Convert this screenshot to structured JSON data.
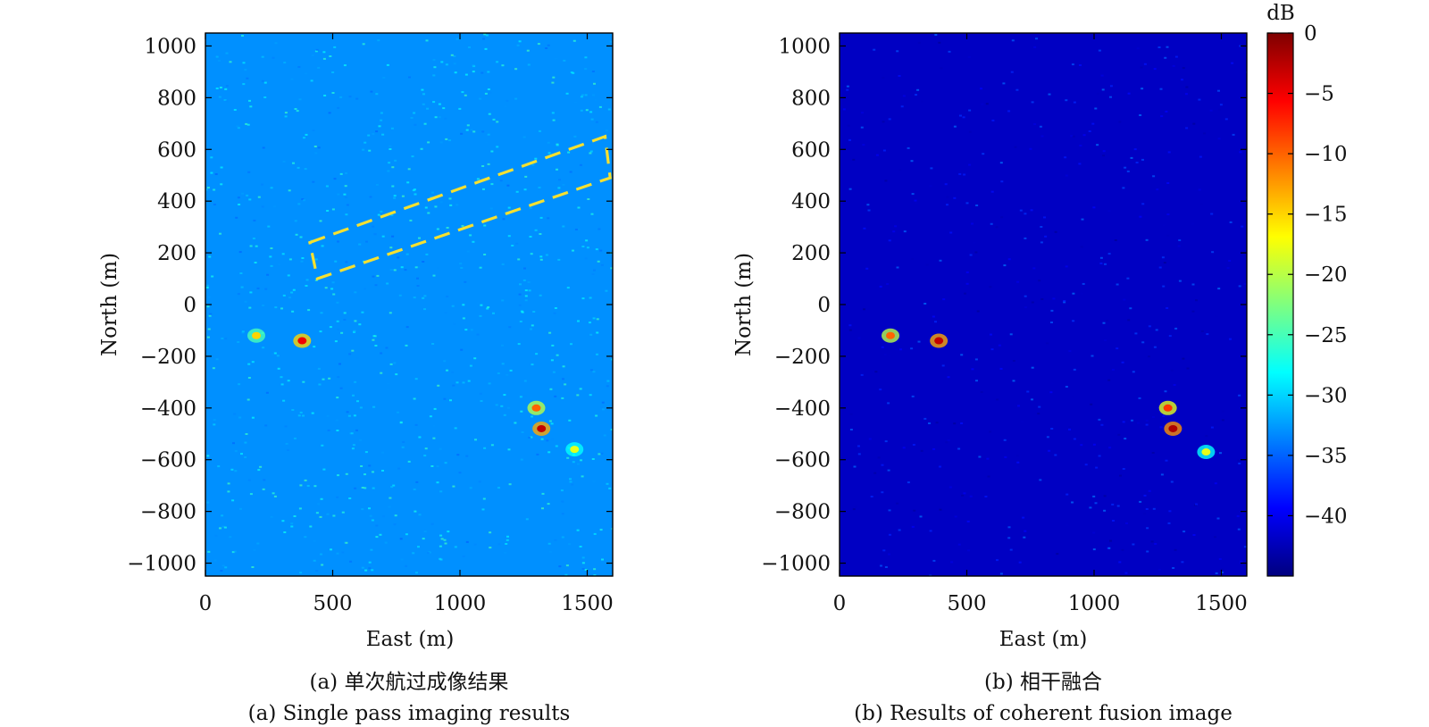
{
  "chart_data": [
    {
      "type": "heatmap",
      "panel": "a",
      "caption_cn": "(a) 单次航过成像结果",
      "caption_en": "(a) Single pass imaging results",
      "xlabel": "East (m)",
      "ylabel": "North (m)",
      "xlim": [
        0,
        1600
      ],
      "ylim": [
        -1050,
        1050
      ],
      "xticks": [
        "0",
        "500",
        "1000",
        "1500"
      ],
      "xtick_values": [
        0,
        500,
        1000,
        1500
      ],
      "yticks": [
        "1000",
        "800",
        "600",
        "400",
        "200",
        "0",
        "−200",
        "−400",
        "−600",
        "−800",
        "−1000"
      ],
      "ytick_values": [
        1000,
        800,
        600,
        400,
        200,
        0,
        -200,
        -400,
        -600,
        -800,
        -1000
      ],
      "background_level_db": -33,
      "annotation": {
        "type": "dashed-rectangle",
        "color": "#f5e030",
        "corners": [
          [
            410,
            240
          ],
          [
            1570,
            650
          ],
          [
            1590,
            490
          ],
          [
            440,
            100
          ]
        ]
      },
      "bright_features": [
        {
          "east": 380,
          "north": -140,
          "db": -5
        },
        {
          "east": 200,
          "north": -120,
          "db": -15
        },
        {
          "east": 1320,
          "north": -480,
          "db": -3
        },
        {
          "east": 1300,
          "north": -400,
          "db": -10
        },
        {
          "east": 1450,
          "north": -560,
          "db": -18
        }
      ]
    },
    {
      "type": "heatmap",
      "panel": "b",
      "caption_cn": "(b) 相干融合",
      "caption_en": "(b) Results of coherent fusion image",
      "xlabel": "East (m)",
      "ylabel": "North (m)",
      "xlim": [
        0,
        1600
      ],
      "ylim": [
        -1050,
        1050
      ],
      "xticks": [
        "0",
        "500",
        "1000",
        "1500"
      ],
      "xtick_values": [
        0,
        500,
        1000,
        1500
      ],
      "yticks": [
        "1000",
        "800",
        "600",
        "400",
        "200",
        "0",
        "−200",
        "−400",
        "−600",
        "−800",
        "−1000"
      ],
      "ytick_values": [
        1000,
        800,
        600,
        400,
        200,
        0,
        -200,
        -400,
        -600,
        -800,
        -1000
      ],
      "background_level_db": -42,
      "bright_features": [
        {
          "east": 390,
          "north": -140,
          "db": -3
        },
        {
          "east": 200,
          "north": -120,
          "db": -10
        },
        {
          "east": 1310,
          "north": -480,
          "db": -2
        },
        {
          "east": 1290,
          "north": -400,
          "db": -8
        },
        {
          "east": 1440,
          "north": -570,
          "db": -18
        }
      ]
    }
  ],
  "colorbar": {
    "unit": "dB",
    "range": [
      -45,
      0
    ],
    "ticks": [
      "0",
      "−5",
      "−10",
      "−15",
      "−20",
      "−25",
      "−30",
      "−35",
      "−40"
    ],
    "tick_values": [
      0,
      -5,
      -10,
      -15,
      -20,
      -25,
      -30,
      -35,
      -40
    ],
    "colormap": "jet",
    "colors": [
      "#00007f",
      "#0000ff",
      "#007fff",
      "#00ffff",
      "#7fff7f",
      "#ffff00",
      "#ff7f00",
      "#ff0000",
      "#7f0000"
    ]
  }
}
